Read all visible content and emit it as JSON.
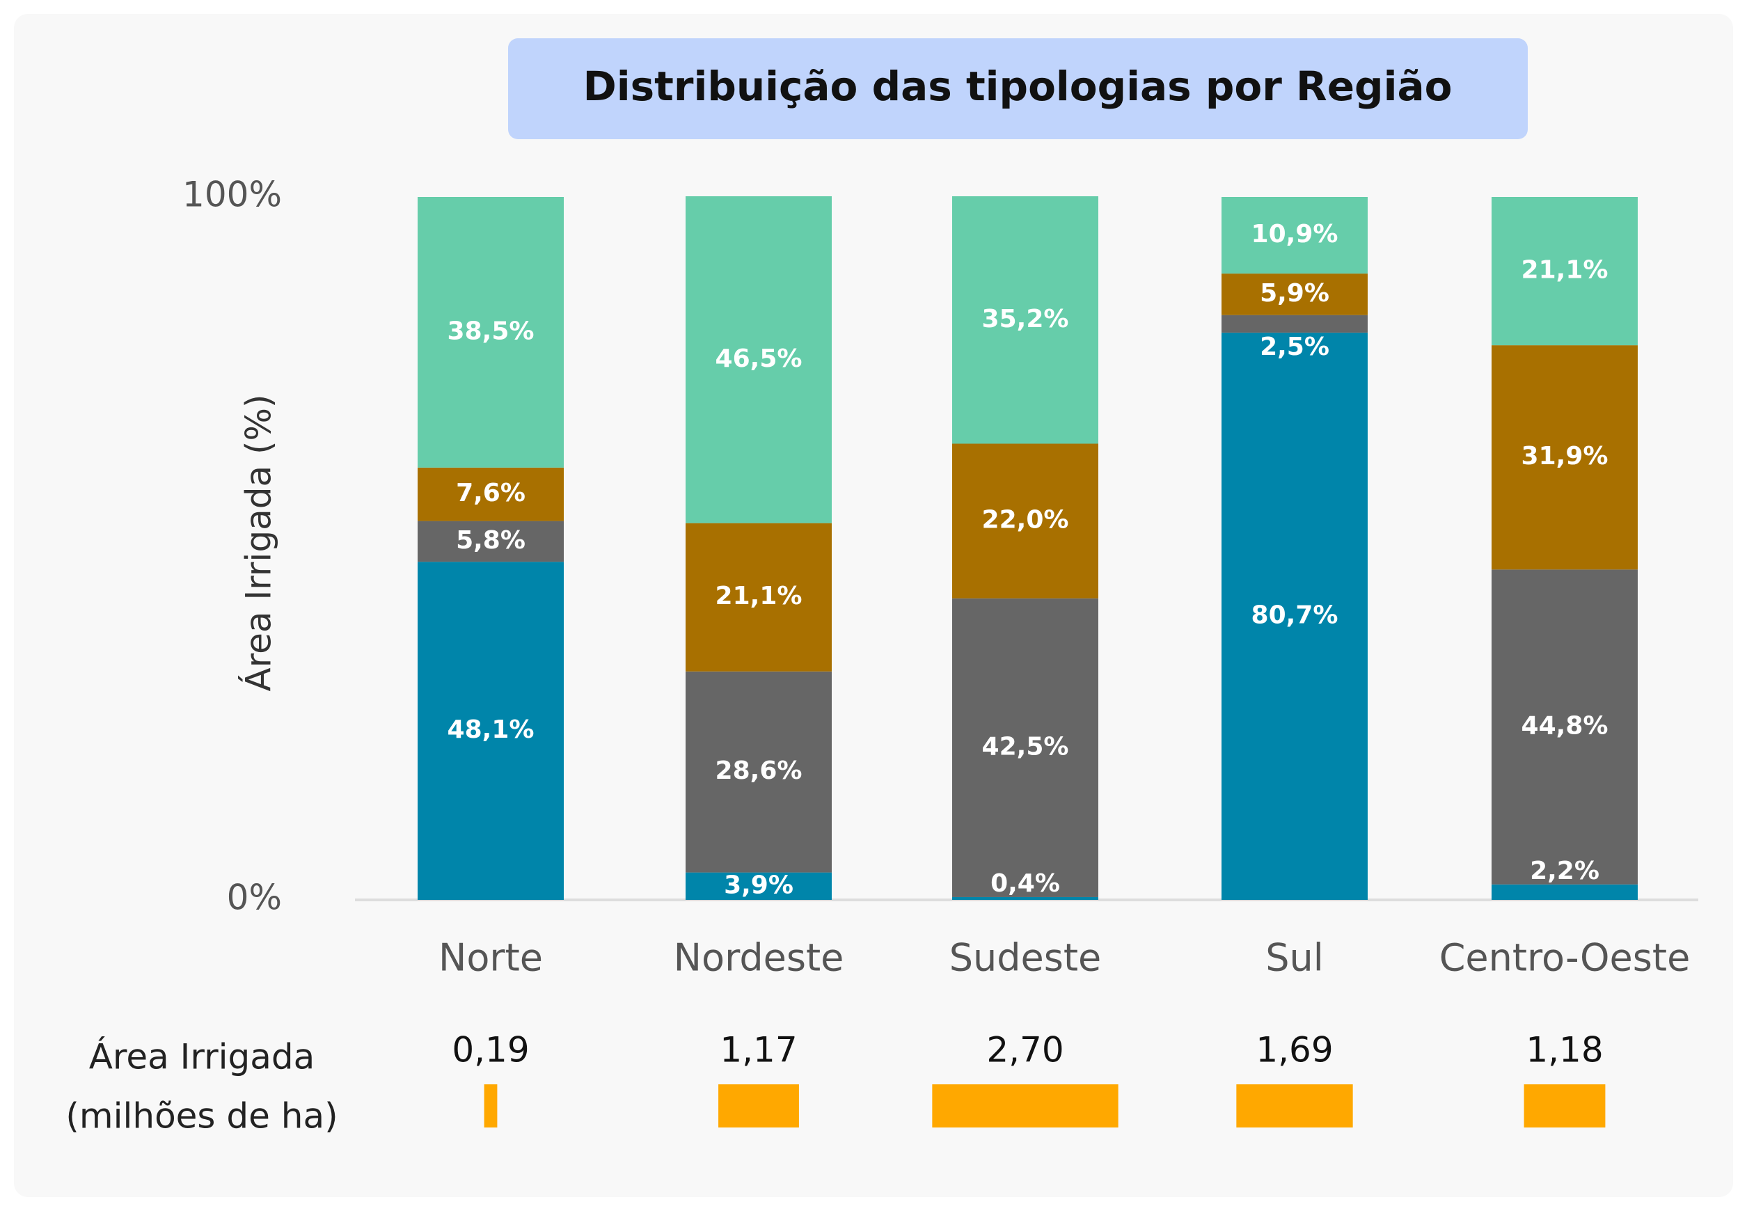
{
  "chart_data": {
    "type": "stacked_bar_100",
    "title": "Distribuição das tipologias por Região",
    "y_label": "Área Irrigada (%)",
    "categories": [
      "Norte",
      "Nordeste",
      "Sudeste",
      "Sul",
      "Centro-Oeste"
    ],
    "series": [
      {
        "color": "#0085aa",
        "values": [
          48.1,
          3.9,
          0.4,
          80.7,
          2.2
        ],
        "value_labels": [
          "48,1%",
          "3,9%",
          "0,4%",
          "80,7%",
          "2,2%"
        ]
      },
      {
        "color": "#666666",
        "values": [
          5.8,
          28.6,
          42.5,
          2.5,
          44.8
        ],
        "value_labels": [
          "5,8%",
          "28,6%",
          "42,5%",
          "2,5%",
          "44,8%"
        ]
      },
      {
        "color": "#a87000",
        "values": [
          7.6,
          21.1,
          22.0,
          5.9,
          31.9
        ],
        "value_labels": [
          "7,6%",
          "21,1%",
          "22,0%",
          "5,9%",
          "31,9%"
        ]
      },
      {
        "color": "#66cdaa",
        "values": [
          38.5,
          46.5,
          35.2,
          10.9,
          21.1
        ],
        "value_labels": [
          "38,5%",
          "46,5%",
          "35,2%",
          "10,9%",
          "21,1%"
        ]
      }
    ],
    "ylim": [
      0,
      100
    ],
    "yticks": [
      {
        "value": 0,
        "label": "0%"
      },
      {
        "value": 100,
        "label": "100%"
      }
    ],
    "area": {
      "label": [
        "Área Irrigada",
        "(milhões de ha)"
      ],
      "color": "#ffa800",
      "values": [
        0.19,
        1.17,
        2.7,
        1.69,
        1.18
      ],
      "value_labels": [
        "0,19",
        "1,17",
        "2,70",
        "1,69",
        "1,18"
      ]
    }
  }
}
